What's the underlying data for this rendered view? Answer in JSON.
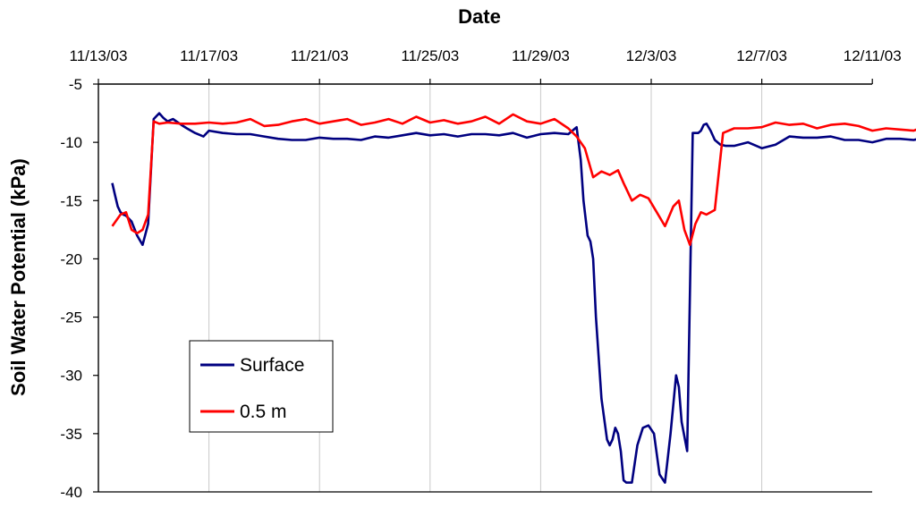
{
  "chart_data": {
    "type": "line",
    "title": "",
    "xlabel": "Date",
    "ylabel": "Soil Water Potential (kPa)",
    "x_axis_position": "top",
    "x_tick_labels": [
      "11/13/03",
      "11/17/03",
      "11/21/03",
      "11/25/03",
      "11/29/03",
      "12/3/03",
      "12/7/03",
      "12/11/03"
    ],
    "y_tick_labels": [
      "-5",
      "-10",
      "-15",
      "-20",
      "-25",
      "-30",
      "-35",
      "-40"
    ],
    "y_ticks": [
      -5,
      -10,
      -15,
      -20,
      -25,
      -30,
      -35,
      -40
    ],
    "x_range_days": [
      0,
      28
    ],
    "ylim": [
      -40,
      -5
    ],
    "grid": "vertical gridlines at date ticks",
    "legend_position": "lower-left",
    "series": [
      {
        "name": "Surface",
        "color": "#000080",
        "x": [
          0.5,
          0.6,
          0.7,
          0.8,
          0.9,
          1.0,
          1.2,
          1.4,
          1.6,
          1.8,
          2.0,
          2.2,
          2.35,
          2.5,
          2.7,
          3.0,
          3.2,
          3.5,
          3.8,
          4.0,
          4.5,
          5.0,
          5.5,
          6.0,
          6.5,
          7.0,
          7.5,
          8.0,
          8.5,
          9.0,
          9.5,
          10.0,
          10.5,
          11.0,
          11.5,
          12.0,
          12.5,
          13.0,
          13.5,
          14.0,
          14.5,
          15.0,
          15.5,
          16.0,
          16.5,
          17.0,
          17.3,
          17.45,
          17.55,
          17.7,
          17.8,
          17.9,
          18.0,
          18.2,
          18.4,
          18.5,
          18.6,
          18.7,
          18.8,
          18.9,
          19.0,
          19.1,
          19.3,
          19.5,
          19.7,
          19.9,
          20.1,
          20.3,
          20.5,
          20.7,
          20.9,
          21.0,
          21.1,
          21.3,
          21.5,
          21.7,
          21.8,
          21.9,
          22.0,
          22.15,
          22.3,
          22.5,
          22.7,
          23.0,
          23.5,
          24.0,
          24.5,
          25.0,
          25.5,
          26.0,
          26.5,
          27.0,
          27.5,
          28.0,
          28.5,
          29.0,
          29.5,
          30.0,
          30.5,
          31.0,
          31.5,
          32.0,
          32.5,
          33.0,
          33.5,
          34.0,
          34.5,
          35.0,
          35.5,
          36.0,
          36.5,
          37.0,
          37.5,
          38.0
        ],
        "values": [
          -13.5,
          -14.5,
          -15.5,
          -16,
          -16.2,
          -16.3,
          -16.8,
          -18,
          -18.8,
          -17,
          -8.0,
          -7.5,
          -7.9,
          -8.2,
          -8.0,
          -8.5,
          -8.8,
          -9.2,
          -9.5,
          -9.0,
          -9.2,
          -9.3,
          -9.3,
          -9.5,
          -9.7,
          -9.8,
          -9.8,
          -9.6,
          -9.7,
          -9.7,
          -9.8,
          -9.5,
          -9.6,
          -9.4,
          -9.2,
          -9.4,
          -9.3,
          -9.5,
          -9.3,
          -9.3,
          -9.4,
          -9.2,
          -9.6,
          -9.3,
          -9.2,
          -9.3,
          -8.7,
          -11.5,
          -15,
          -18,
          -18.5,
          -20,
          -25,
          -32,
          -35.5,
          -36,
          -35.5,
          -34.5,
          -35,
          -36.5,
          -39,
          -39.2,
          -39.2,
          -36,
          -34.5,
          -34.3,
          -35,
          -38.5,
          -39.2,
          -35,
          -30,
          -31,
          -34,
          -36.5,
          -9.2,
          -9.2,
          -9.0,
          -8.5,
          -8.4,
          -9.0,
          -9.8,
          -10.2,
          -10.3,
          -10.3,
          -10.0,
          -10.5,
          -10.2,
          -9.5,
          -9.6,
          -9.6,
          -9.5,
          -9.8,
          -9.8,
          -10.0,
          -9.7,
          -9.7,
          -9.8,
          -9.5,
          -9.6,
          -9.8,
          -9.4,
          -9.5,
          -9.6,
          -9.5,
          -9.6,
          -9.4,
          -9.7,
          -9.5,
          -9.6,
          -9.6,
          -9.7,
          -9.4,
          -9.5,
          -9.4
        ]
      },
      {
        "name": "0.5 m",
        "color": "#ff0000",
        "x": [
          0.5,
          0.8,
          1.0,
          1.2,
          1.4,
          1.6,
          1.8,
          2.0,
          2.2,
          2.5,
          3.0,
          3.5,
          4.0,
          4.5,
          5.0,
          5.5,
          6.0,
          6.5,
          7.0,
          7.5,
          8.0,
          8.5,
          9.0,
          9.5,
          10.0,
          10.5,
          11.0,
          11.5,
          12.0,
          12.5,
          13.0,
          13.5,
          14.0,
          14.5,
          15.0,
          15.5,
          16.0,
          16.5,
          17.0,
          17.3,
          17.6,
          17.9,
          18.2,
          18.5,
          18.8,
          19.0,
          19.3,
          19.6,
          19.9,
          20.2,
          20.5,
          20.8,
          21.0,
          21.2,
          21.4,
          21.6,
          21.8,
          22.0,
          22.3,
          22.6,
          23.0,
          23.5,
          24.0,
          24.5,
          25.0,
          25.5,
          26.0,
          26.5,
          27.0,
          27.5,
          28.0,
          28.5,
          29.0,
          29.5,
          30.0,
          30.5,
          31.0,
          31.5,
          32.0,
          32.5,
          33.0,
          33.5,
          34.0,
          34.5,
          35.0,
          35.5,
          36.0,
          36.5,
          37.0,
          37.5,
          38.0
        ],
        "values": [
          -17.2,
          -16.2,
          -16.0,
          -17.5,
          -17.8,
          -17.5,
          -16.2,
          -8.2,
          -8.4,
          -8.3,
          -8.4,
          -8.4,
          -8.3,
          -8.4,
          -8.3,
          -8.0,
          -8.6,
          -8.5,
          -8.2,
          -8.0,
          -8.4,
          -8.2,
          -8.0,
          -8.5,
          -8.3,
          -8.0,
          -8.4,
          -7.8,
          -8.3,
          -8.1,
          -8.4,
          -8.2,
          -7.8,
          -8.4,
          -7.6,
          -8.2,
          -8.4,
          -8.0,
          -8.8,
          -9.5,
          -10.5,
          -13.0,
          -12.5,
          -12.8,
          -12.4,
          -13.5,
          -15.0,
          -14.5,
          -14.8,
          -16.0,
          -17.2,
          -15.5,
          -15.0,
          -17.5,
          -18.8,
          -17.0,
          -16.0,
          -16.2,
          -15.8,
          -9.2,
          -8.8,
          -8.8,
          -8.7,
          -8.3,
          -8.5,
          -8.4,
          -8.8,
          -8.5,
          -8.4,
          -8.6,
          -9.0,
          -8.8,
          -8.9,
          -9.0,
          -8.5,
          -8.7,
          -8.5,
          -8.6,
          -8.4,
          -8.8,
          -8.5,
          -8.7,
          -8.5,
          -8.8,
          -8.6,
          -8.3,
          -8.6,
          -8.4,
          -8.3,
          -8.4,
          -8.4
        ]
      }
    ]
  }
}
